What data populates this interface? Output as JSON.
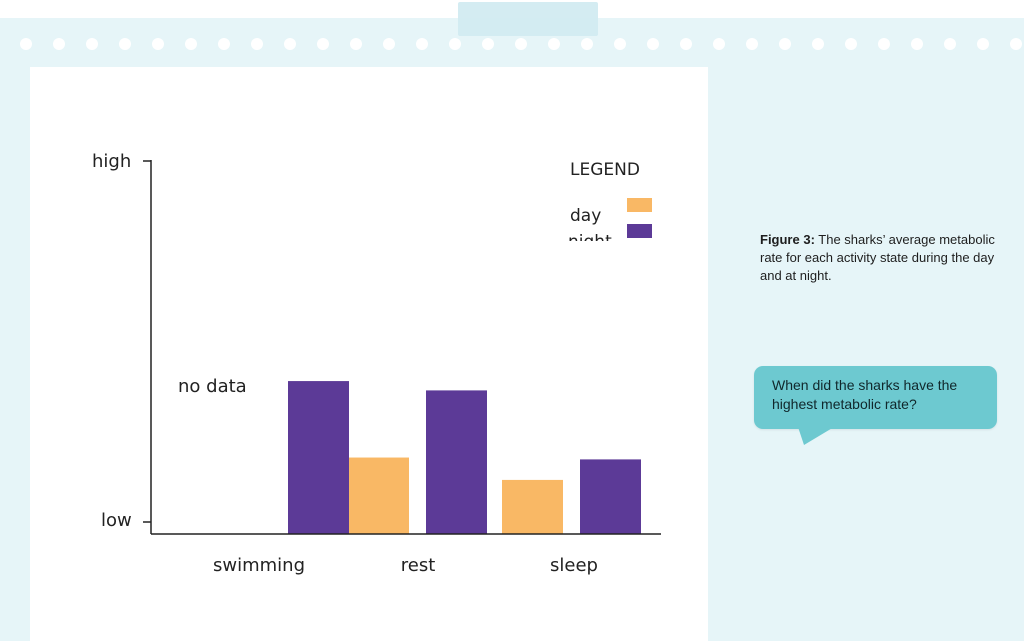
{
  "caption": {
    "label": "Figure 3:",
    "text": "The sharks’ average metabolic rate for each activity state during the day and at night."
  },
  "question": "When did the sharks have the highest metabolic rate?",
  "colors": {
    "day": "#f9b865",
    "night": "#5c3a97",
    "board": "#e6f5f8",
    "bubble": "#6dc9d0"
  },
  "chart_data": {
    "type": "bar",
    "categories": [
      "swimming",
      "rest",
      "sleep"
    ],
    "series": [
      {
        "name": "day",
        "values": [
          null,
          0.205,
          0.145
        ]
      },
      {
        "name": "night",
        "values": [
          0.41,
          0.385,
          0.2
        ]
      }
    ],
    "ylim": [
      0,
      1
    ],
    "y_tick_labels": [
      "low",
      "high"
    ],
    "legend_title": "LEGEND",
    "legend_position": "top-right",
    "annotation": "no data",
    "grid": false
  }
}
